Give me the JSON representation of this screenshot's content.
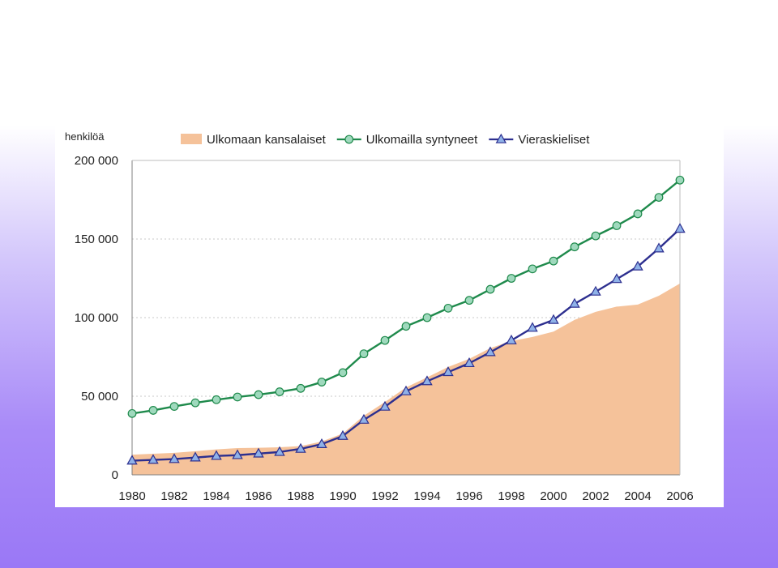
{
  "slide": {
    "background": "lavender gradient"
  },
  "chart_data": {
    "type": "line",
    "title": "",
    "unit_label": "henkilöä",
    "xlabel": "",
    "ylabel": "",
    "x": [
      1980,
      1981,
      1982,
      1983,
      1984,
      1985,
      1986,
      1987,
      1988,
      1989,
      1990,
      1991,
      1992,
      1993,
      1994,
      1995,
      1996,
      1997,
      1998,
      1999,
      2000,
      2001,
      2002,
      2003,
      2004,
      2005,
      2006
    ],
    "x_tick_labels": [
      "1980",
      "1982",
      "1984",
      "1986",
      "1988",
      "1990",
      "1992",
      "1994",
      "1996",
      "1998",
      "2000",
      "2002",
      "2004",
      "2006"
    ],
    "y_tick_labels": [
      "0",
      "50 000",
      "100 000",
      "150 000",
      "200 000"
    ],
    "y_ticks": [
      0,
      50000,
      100000,
      150000,
      200000
    ],
    "ylim": [
      0,
      200000
    ],
    "xlim": [
      1980,
      2006
    ],
    "grid": "horizontal dotted",
    "legend_position": "top",
    "series": [
      {
        "name": "Ulkomaan kansalaiset",
        "kind": "area",
        "color": "#f5c29a",
        "values": [
          12800,
          13400,
          14000,
          15000,
          16200,
          17000,
          17200,
          17500,
          18300,
          21200,
          26300,
          37600,
          46300,
          55600,
          62000,
          68600,
          73800,
          80600,
          85100,
          87700,
          91100,
          98600,
          103700,
          107000,
          108300,
          113900,
          121700
        ]
      },
      {
        "name": "Ulkomailla syntyneet",
        "kind": "line",
        "marker": "circle",
        "color": "#1f8a4c",
        "marker_fill": "#9fd9bd",
        "values": [
          39000,
          41000,
          43500,
          45800,
          47800,
          49500,
          51000,
          52800,
          55000,
          59000,
          65000,
          77000,
          85500,
          94500,
          100000,
          106000,
          111000,
          118000,
          125000,
          131000,
          136000,
          145000,
          152000,
          158500,
          166000,
          176500,
          187500
        ]
      },
      {
        "name": "Vieraskieliset",
        "kind": "line",
        "marker": "triangle",
        "color": "#2d2f8f",
        "marker_fill": "#8fb2e8",
        "values": [
          9000,
          9500,
          10000,
          11000,
          12000,
          12500,
          13500,
          14500,
          16500,
          19500,
          24700,
          35000,
          43300,
          53100,
          59500,
          65300,
          71000,
          78000,
          85500,
          93500,
          98500,
          108800,
          116500,
          124500,
          132500,
          144000,
          156500
        ]
      }
    ]
  }
}
